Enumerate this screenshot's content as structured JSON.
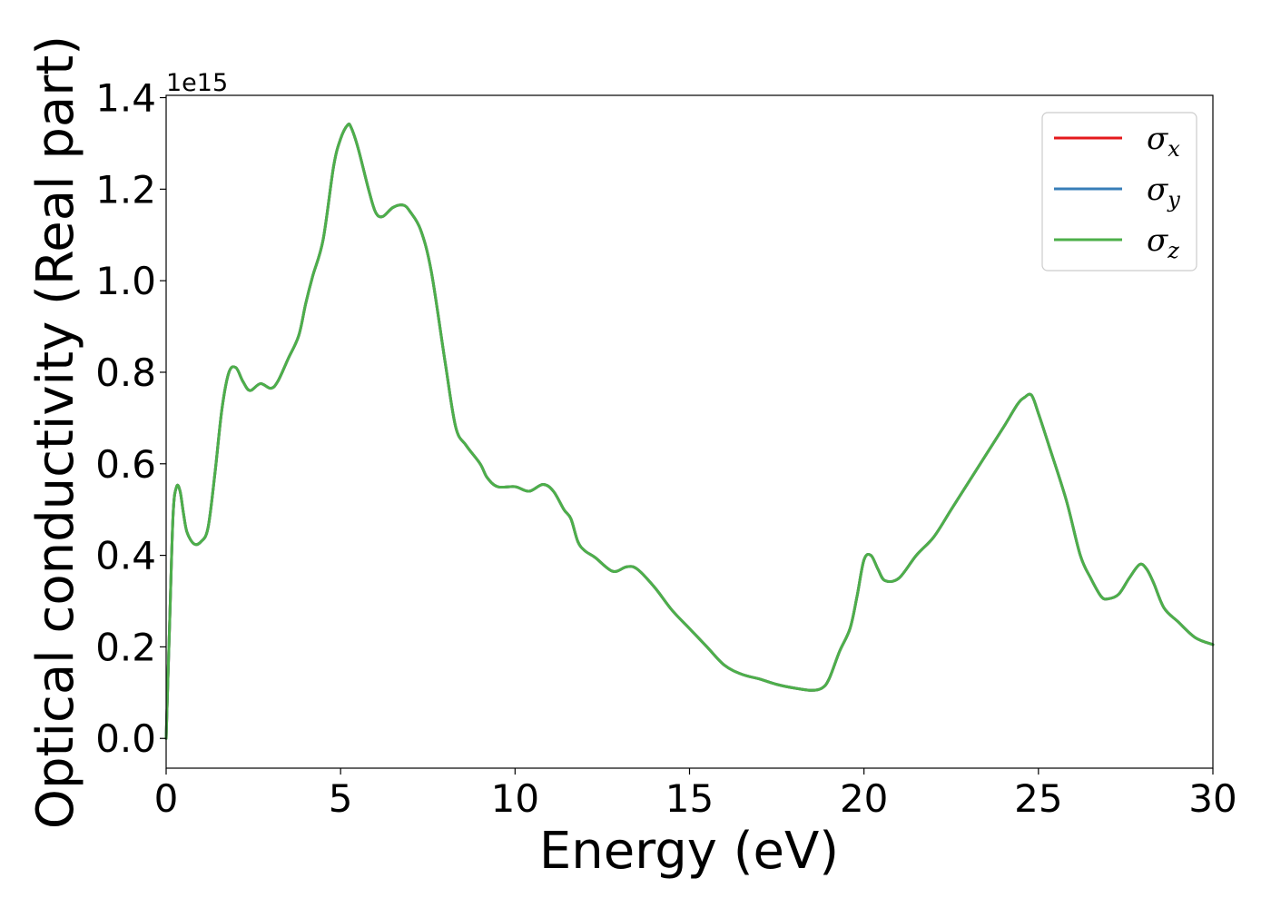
{
  "chart_data": {
    "type": "line",
    "title": "",
    "xlabel": "Energy (eV)",
    "ylabel": "Optical conductivity (Real part)",
    "y_offset_label": "1e15",
    "xlim": [
      0,
      30
    ],
    "ylim": [
      -0.065,
      1.405
    ],
    "x_ticks": [
      0,
      5,
      10,
      15,
      20,
      25,
      30
    ],
    "x_tick_labels": [
      "0",
      "5",
      "10",
      "15",
      "20",
      "25",
      "30"
    ],
    "y_ticks": [
      0.0,
      0.2,
      0.4,
      0.6,
      0.8,
      1.0,
      1.2,
      1.4
    ],
    "y_tick_labels": [
      "0.0",
      "0.2",
      "0.4",
      "0.6",
      "0.8",
      "1.0",
      "1.2",
      "1.4"
    ],
    "grid": false,
    "legend_position": "top-right",
    "x": [
      0,
      0.1,
      0.2,
      0.3,
      0.4,
      0.5,
      0.6,
      0.8,
      1.0,
      1.2,
      1.4,
      1.6,
      1.8,
      2.0,
      2.2,
      2.4,
      2.7,
      3.0,
      3.2,
      3.5,
      3.8,
      4.0,
      4.2,
      4.5,
      4.8,
      5.0,
      5.2,
      5.3,
      5.5,
      5.8,
      6.0,
      6.2,
      6.5,
      6.8,
      7.0,
      7.3,
      7.6,
      8.0,
      8.3,
      8.6,
      9.0,
      9.2,
      9.5,
      10.0,
      10.4,
      10.8,
      11.1,
      11.4,
      11.6,
      11.8,
      12.0,
      12.3,
      12.8,
      13.2,
      13.5,
      14.0,
      14.5,
      15.0,
      15.5,
      16.0,
      16.5,
      17.0,
      17.5,
      18.0,
      18.5,
      18.8,
      19.0,
      19.3,
      19.6,
      19.8,
      20.0,
      20.2,
      20.4,
      20.6,
      21.0,
      21.5,
      22.0,
      22.5,
      23.0,
      23.5,
      24.0,
      24.4,
      24.6,
      24.8,
      25.0,
      25.3,
      25.8,
      26.2,
      26.5,
      26.8,
      27.0,
      27.3,
      27.6,
      27.9,
      28.1,
      28.3,
      28.6,
      29.0,
      29.5,
      30.0
    ],
    "series": [
      {
        "name": "σx",
        "symbol": "σ",
        "subscript": "x",
        "color": "#e41a1c",
        "values": [
          0.0,
          0.25,
          0.49,
          0.55,
          0.54,
          0.49,
          0.45,
          0.425,
          0.43,
          0.46,
          0.58,
          0.72,
          0.8,
          0.81,
          0.78,
          0.76,
          0.775,
          0.765,
          0.78,
          0.83,
          0.88,
          0.95,
          1.01,
          1.09,
          1.25,
          1.31,
          1.34,
          1.335,
          1.29,
          1.2,
          1.15,
          1.14,
          1.16,
          1.165,
          1.15,
          1.11,
          1.02,
          0.82,
          0.68,
          0.64,
          0.6,
          0.57,
          0.55,
          0.55,
          0.54,
          0.555,
          0.54,
          0.5,
          0.48,
          0.43,
          0.41,
          0.395,
          0.365,
          0.375,
          0.37,
          0.33,
          0.28,
          0.24,
          0.2,
          0.16,
          0.14,
          0.13,
          0.118,
          0.11,
          0.105,
          0.11,
          0.13,
          0.19,
          0.24,
          0.31,
          0.39,
          0.4,
          0.37,
          0.345,
          0.35,
          0.4,
          0.44,
          0.5,
          0.56,
          0.62,
          0.68,
          0.73,
          0.745,
          0.75,
          0.71,
          0.64,
          0.52,
          0.4,
          0.35,
          0.31,
          0.305,
          0.315,
          0.35,
          0.38,
          0.37,
          0.34,
          0.285,
          0.255,
          0.22,
          0.205
        ]
      },
      {
        "name": "σy",
        "symbol": "σ",
        "subscript": "y",
        "color": "#377eb8",
        "values": [
          0.0,
          0.25,
          0.49,
          0.55,
          0.54,
          0.49,
          0.45,
          0.425,
          0.43,
          0.46,
          0.58,
          0.72,
          0.8,
          0.81,
          0.78,
          0.76,
          0.775,
          0.765,
          0.78,
          0.83,
          0.88,
          0.95,
          1.01,
          1.09,
          1.25,
          1.31,
          1.34,
          1.335,
          1.29,
          1.2,
          1.15,
          1.14,
          1.16,
          1.165,
          1.15,
          1.11,
          1.02,
          0.82,
          0.68,
          0.64,
          0.6,
          0.57,
          0.55,
          0.55,
          0.54,
          0.555,
          0.54,
          0.5,
          0.48,
          0.43,
          0.41,
          0.395,
          0.365,
          0.375,
          0.37,
          0.33,
          0.28,
          0.24,
          0.2,
          0.16,
          0.14,
          0.13,
          0.118,
          0.11,
          0.105,
          0.11,
          0.13,
          0.19,
          0.24,
          0.31,
          0.39,
          0.4,
          0.37,
          0.345,
          0.35,
          0.4,
          0.44,
          0.5,
          0.56,
          0.62,
          0.68,
          0.73,
          0.745,
          0.75,
          0.71,
          0.64,
          0.52,
          0.4,
          0.35,
          0.31,
          0.305,
          0.315,
          0.35,
          0.38,
          0.37,
          0.34,
          0.285,
          0.255,
          0.22,
          0.205
        ]
      },
      {
        "name": "σz",
        "symbol": "σ",
        "subscript": "z",
        "color": "#4daf4a",
        "values": [
          0.0,
          0.25,
          0.49,
          0.55,
          0.54,
          0.49,
          0.45,
          0.425,
          0.43,
          0.46,
          0.58,
          0.72,
          0.8,
          0.81,
          0.78,
          0.76,
          0.775,
          0.765,
          0.78,
          0.83,
          0.88,
          0.95,
          1.01,
          1.09,
          1.25,
          1.31,
          1.34,
          1.335,
          1.29,
          1.2,
          1.15,
          1.14,
          1.16,
          1.165,
          1.15,
          1.11,
          1.02,
          0.82,
          0.68,
          0.64,
          0.6,
          0.57,
          0.55,
          0.55,
          0.54,
          0.555,
          0.54,
          0.5,
          0.48,
          0.43,
          0.41,
          0.395,
          0.365,
          0.375,
          0.37,
          0.33,
          0.28,
          0.24,
          0.2,
          0.16,
          0.14,
          0.13,
          0.118,
          0.11,
          0.105,
          0.11,
          0.13,
          0.19,
          0.24,
          0.31,
          0.39,
          0.4,
          0.37,
          0.345,
          0.35,
          0.4,
          0.44,
          0.5,
          0.56,
          0.62,
          0.68,
          0.73,
          0.745,
          0.75,
          0.71,
          0.64,
          0.52,
          0.4,
          0.35,
          0.31,
          0.305,
          0.315,
          0.35,
          0.38,
          0.37,
          0.34,
          0.285,
          0.255,
          0.22,
          0.205
        ]
      }
    ]
  }
}
